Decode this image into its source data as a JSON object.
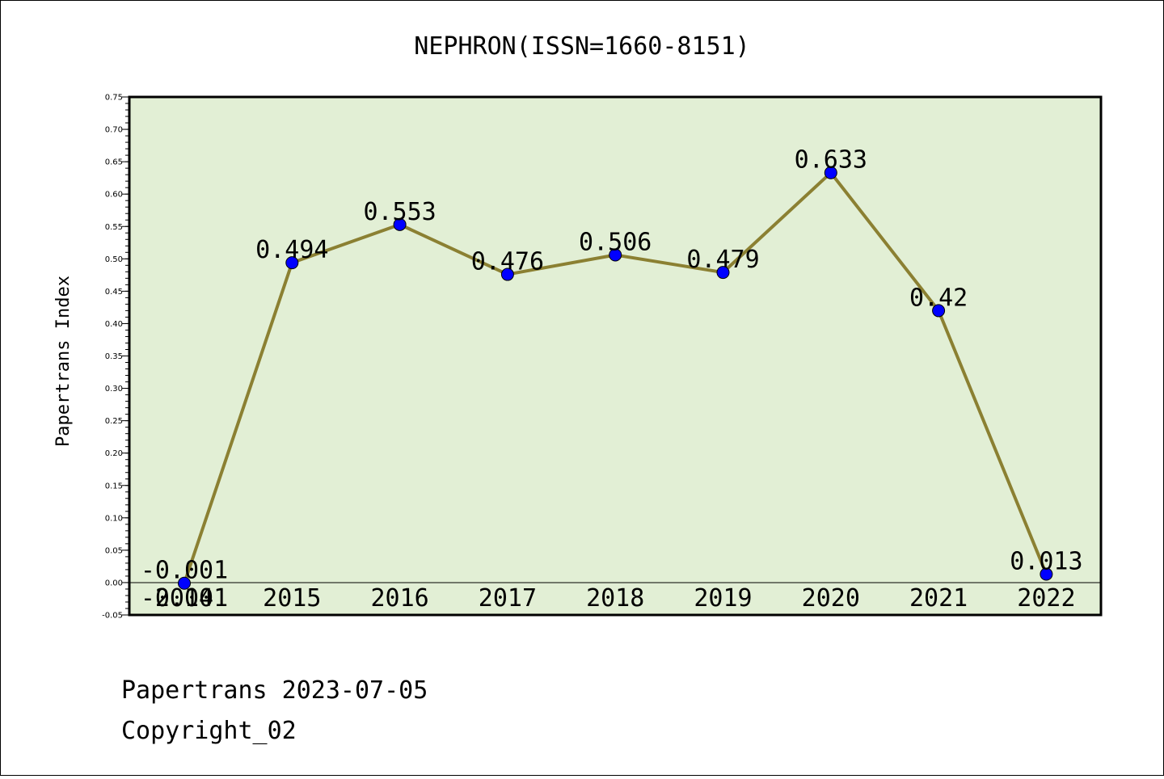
{
  "chart_data": {
    "type": "line",
    "title": "NEPHRON(ISSN=1660-8151)",
    "ylabel": "Papertrans Index",
    "xlabel": "",
    "categories": [
      "-0.001",
      "2015",
      "2016",
      "2017",
      "2018",
      "2019",
      "2020",
      "2021",
      "2022"
    ],
    "category_under_first": "2014",
    "values": [
      -0.001,
      0.494,
      0.553,
      0.476,
      0.506,
      0.479,
      0.633,
      0.42,
      0.013
    ],
    "data_labels": [
      "-0.001",
      "0.494",
      "0.553",
      "0.476",
      "0.506",
      "0.479",
      "0.633",
      "0.42",
      "0.013"
    ],
    "ylim": [
      -0.05,
      0.75
    ],
    "yticks": [
      "-0.05",
      "0.00",
      "0.05",
      "0.10",
      "0.15",
      "0.20",
      "0.25",
      "0.30",
      "0.35",
      "0.40",
      "0.45",
      "0.50",
      "0.55",
      "0.60",
      "0.65",
      "0.70",
      "0.75"
    ],
    "grid": false,
    "line_color": "#8b8032",
    "marker_color": "#0000ff",
    "plot_background": "#e2efd5"
  },
  "footer": {
    "line1": "Papertrans 2023-07-05",
    "line2": "Copyright_02"
  }
}
